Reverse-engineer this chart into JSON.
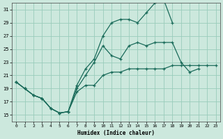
{
  "title": "",
  "xlabel": "Humidex (Indice chaleur)",
  "bg_color": "#cce8dd",
  "grid_color": "#99ccbb",
  "line_color": "#1a6b5a",
  "xlim": [
    -0.5,
    23.5
  ],
  "ylim": [
    14,
    32
  ],
  "xticks": [
    0,
    1,
    2,
    3,
    4,
    5,
    6,
    7,
    8,
    9,
    10,
    11,
    12,
    13,
    14,
    15,
    16,
    17,
    18,
    19,
    20,
    21,
    22,
    23
  ],
  "yticks": [
    15,
    17,
    19,
    21,
    23,
    25,
    27,
    29,
    31
  ],
  "curve_top_x": [
    0,
    1,
    2,
    3,
    4,
    5,
    6,
    7,
    8,
    9,
    10,
    11,
    12,
    13,
    14,
    15,
    16,
    17,
    18,
    19,
    20,
    21,
    22,
    23
  ],
  "curve_top_y": [
    20,
    19,
    18,
    17.5,
    16,
    15.3,
    15.5,
    19.5,
    22,
    23.5,
    27,
    29,
    29.5,
    29.5,
    29,
    30.5,
    32,
    32.5,
    29,
    null,
    null,
    null,
    null,
    null
  ],
  "curve_mid_x": [
    0,
    1,
    2,
    3,
    4,
    5,
    6,
    7,
    8,
    9,
    10,
    11,
    12,
    13,
    14,
    15,
    16,
    17,
    18,
    19,
    20,
    21,
    22,
    23
  ],
  "curve_mid_y": [
    20,
    19,
    18,
    17.5,
    16,
    15.3,
    15.5,
    19,
    21,
    23,
    25.5,
    24,
    23.5,
    25.5,
    26,
    25.5,
    26,
    26,
    26,
    23,
    21.5,
    22,
    null,
    null
  ],
  "curve_bot_x": [
    0,
    1,
    2,
    3,
    4,
    5,
    6,
    7,
    8,
    9,
    10,
    11,
    12,
    13,
    14,
    15,
    16,
    17,
    18,
    19,
    20,
    21,
    22,
    23
  ],
  "curve_bot_y": [
    20,
    19,
    18,
    17.5,
    16,
    15.3,
    15.5,
    18.5,
    19.5,
    19.5,
    21,
    21.5,
    21.5,
    22,
    22,
    22,
    22,
    22,
    22.5,
    22.5,
    22.5,
    22.5,
    22.5,
    22.5
  ]
}
